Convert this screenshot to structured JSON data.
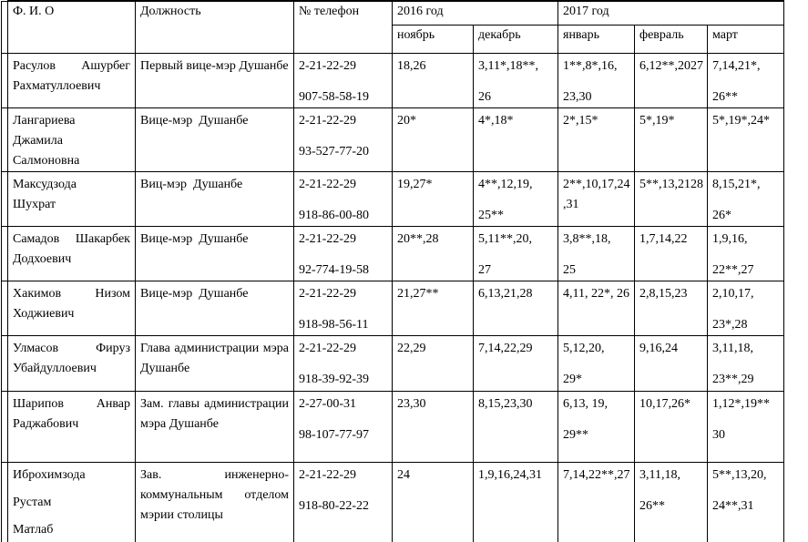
{
  "colors": {
    "text": "#000000",
    "border": "#000000",
    "background": "#ffffff"
  },
  "document": {
    "headers": {
      "fio": "Ф. И. О",
      "position": "Должность",
      "phone": "№ телефон",
      "year2016": "2016 год",
      "year2017": "2017 год",
      "months": [
        "ноябрь",
        "декабрь",
        "январь",
        "февраль",
        "март"
      ]
    },
    "rows": [
      {
        "name": [
          [
            {
              "text": "Расулов Ашурбег",
              "fill": true
            },
            "Рахматуллоевич"
          ]
        ],
        "position": [
          [
            "Первый вице-мэр Душанбе"
          ]
        ],
        "phones": [
          [
            "2-21-22-29"
          ],
          [
            "907-58-58-19"
          ]
        ],
        "months": [
          [
            [
              "18,26"
            ]
          ],
          [
            [
              "3,11*,18**,"
            ],
            [
              "26"
            ]
          ],
          [
            [
              "1**,8*,16,"
            ],
            [
              "23,30"
            ]
          ],
          [
            [
              "6,12**,2027"
            ]
          ],
          [
            [
              "7,14,21*,"
            ],
            [
              "26**"
            ]
          ]
        ]
      },
      {
        "name": [
          [
            "Лангариева",
            "Джамила",
            "Салмоновна"
          ]
        ],
        "position": [
          [
            "Вице-мэр  Душанбе"
          ]
        ],
        "phones": [
          [
            "2-21-22-29"
          ],
          [
            "93-527-77-20"
          ]
        ],
        "months": [
          [
            [
              "20*"
            ]
          ],
          [
            [
              "4*,18*"
            ]
          ],
          [
            [
              "2*,15*"
            ]
          ],
          [
            [
              "5*,19*"
            ]
          ],
          [
            [
              "5*,19*,24*"
            ]
          ]
        ]
      },
      {
        "name": [
          [
            "Максудзода",
            "Шухрат"
          ]
        ],
        "position": [
          [
            "Виц-мэр  Душанбе"
          ]
        ],
        "phones": [
          [
            "2-21-22-29"
          ],
          [
            "918-86-00-80"
          ]
        ],
        "months": [
          [
            [
              "19,27*"
            ]
          ],
          [
            [
              "4**,12,19,"
            ],
            [
              "25**"
            ]
          ],
          [
            [
              "2**,10,17,24",
              ",31"
            ]
          ],
          [
            [
              "5**,13,2128"
            ]
          ],
          [
            [
              "8,15,21*,"
            ],
            [
              "26*"
            ]
          ]
        ]
      },
      {
        "name": [
          [
            {
              "text": "Самадов Шакарбек",
              "fill": true
            },
            "Додхоевич"
          ]
        ],
        "position": [
          [
            "Вице-мэр  Душанбе"
          ]
        ],
        "phones": [
          [
            "2-21-22-29"
          ],
          [
            "92-774-19-58"
          ]
        ],
        "months": [
          [
            [
              "20**,28"
            ]
          ],
          [
            [
              "5,11**,20,"
            ],
            [
              "27"
            ]
          ],
          [
            [
              "3,8**,18,"
            ],
            [
              "25"
            ]
          ],
          [
            [
              "1,7,14,22"
            ]
          ],
          [
            [
              "1,9,16,"
            ],
            [
              "22**,27"
            ]
          ]
        ]
      },
      {
        "name": [
          [
            {
              "text": "Хакимов Низом",
              "fill": true
            },
            "Ходжиевич"
          ]
        ],
        "position": [
          [
            "Вице-мэр  Душанбе"
          ]
        ],
        "phones": [
          [
            "2-21-22-29"
          ],
          [
            "918-98-56-11"
          ]
        ],
        "months": [
          [
            [
              "21,27**"
            ]
          ],
          [
            [
              "6,13,21,28"
            ]
          ],
          [
            [
              "4,11, 22*, 26"
            ]
          ],
          [
            [
              "2,8,15,23"
            ]
          ],
          [
            [
              "2,10,17,"
            ],
            [
              "23*,28"
            ]
          ]
        ]
      },
      {
        "name": [
          [
            {
              "text": "Улмасов Фируз",
              "fill": true
            },
            "Убайдуллоевич"
          ]
        ],
        "position": [
          [
            {
              "text": "Глава администрации мэра",
              "fill": true
            },
            "Душанбе"
          ]
        ],
        "phones": [
          [
            "2-21-22-29"
          ],
          [
            "918-39-92-39"
          ]
        ],
        "months": [
          [
            [
              "22,29"
            ]
          ],
          [
            [
              "7,14,22,29"
            ]
          ],
          [
            [
              "5,12,20,"
            ],
            [
              "29*"
            ]
          ],
          [
            [
              "9,16,24"
            ]
          ],
          [
            [
              "3,11,18,"
            ],
            [
              "23**,29"
            ]
          ]
        ]
      },
      {
        "name": [
          [
            {
              "text": "Шарипов Анвар",
              "fill": true
            },
            "Раджабович"
          ]
        ],
        "position": [
          [
            {
              "text": "Зам. главы администрации",
              "fill": true
            },
            "мэра Душанбе"
          ]
        ],
        "phones": [
          [
            "2-27-00-31"
          ],
          [
            "98-107-77-97"
          ]
        ],
        "months": [
          [
            [
              "23,30"
            ]
          ],
          [
            [
              "8,15,23,30"
            ]
          ],
          [
            [
              "6,13, 19,"
            ],
            [
              "29**"
            ]
          ],
          [
            [
              "10,17,26*"
            ]
          ],
          [
            [
              "1,12*,19**"
            ],
            [
              "30"
            ]
          ]
        ]
      },
      {
        "name": [
          [
            "Иброхимзода"
          ],
          [
            "Рустам"
          ],
          [
            "Матлаб"
          ]
        ],
        "position": [
          [
            {
              "text": "Зав. инженерно-",
              "fill": true
            },
            {
              "text": "коммунальным отделом",
              "fill": true
            },
            "мэрии столицы"
          ]
        ],
        "phones": [
          [
            "2-21-22-29"
          ],
          [
            "918-80-22-22"
          ]
        ],
        "months": [
          [
            [
              "24"
            ]
          ],
          [
            [
              "1,9,16,24,31"
            ]
          ],
          [
            [
              "7,14,22**,27"
            ]
          ],
          [
            [
              "3,11,18,"
            ],
            [
              "26**"
            ]
          ],
          [
            [
              "5**,13,20,"
            ],
            [
              "24**,31"
            ]
          ]
        ]
      }
    ]
  }
}
